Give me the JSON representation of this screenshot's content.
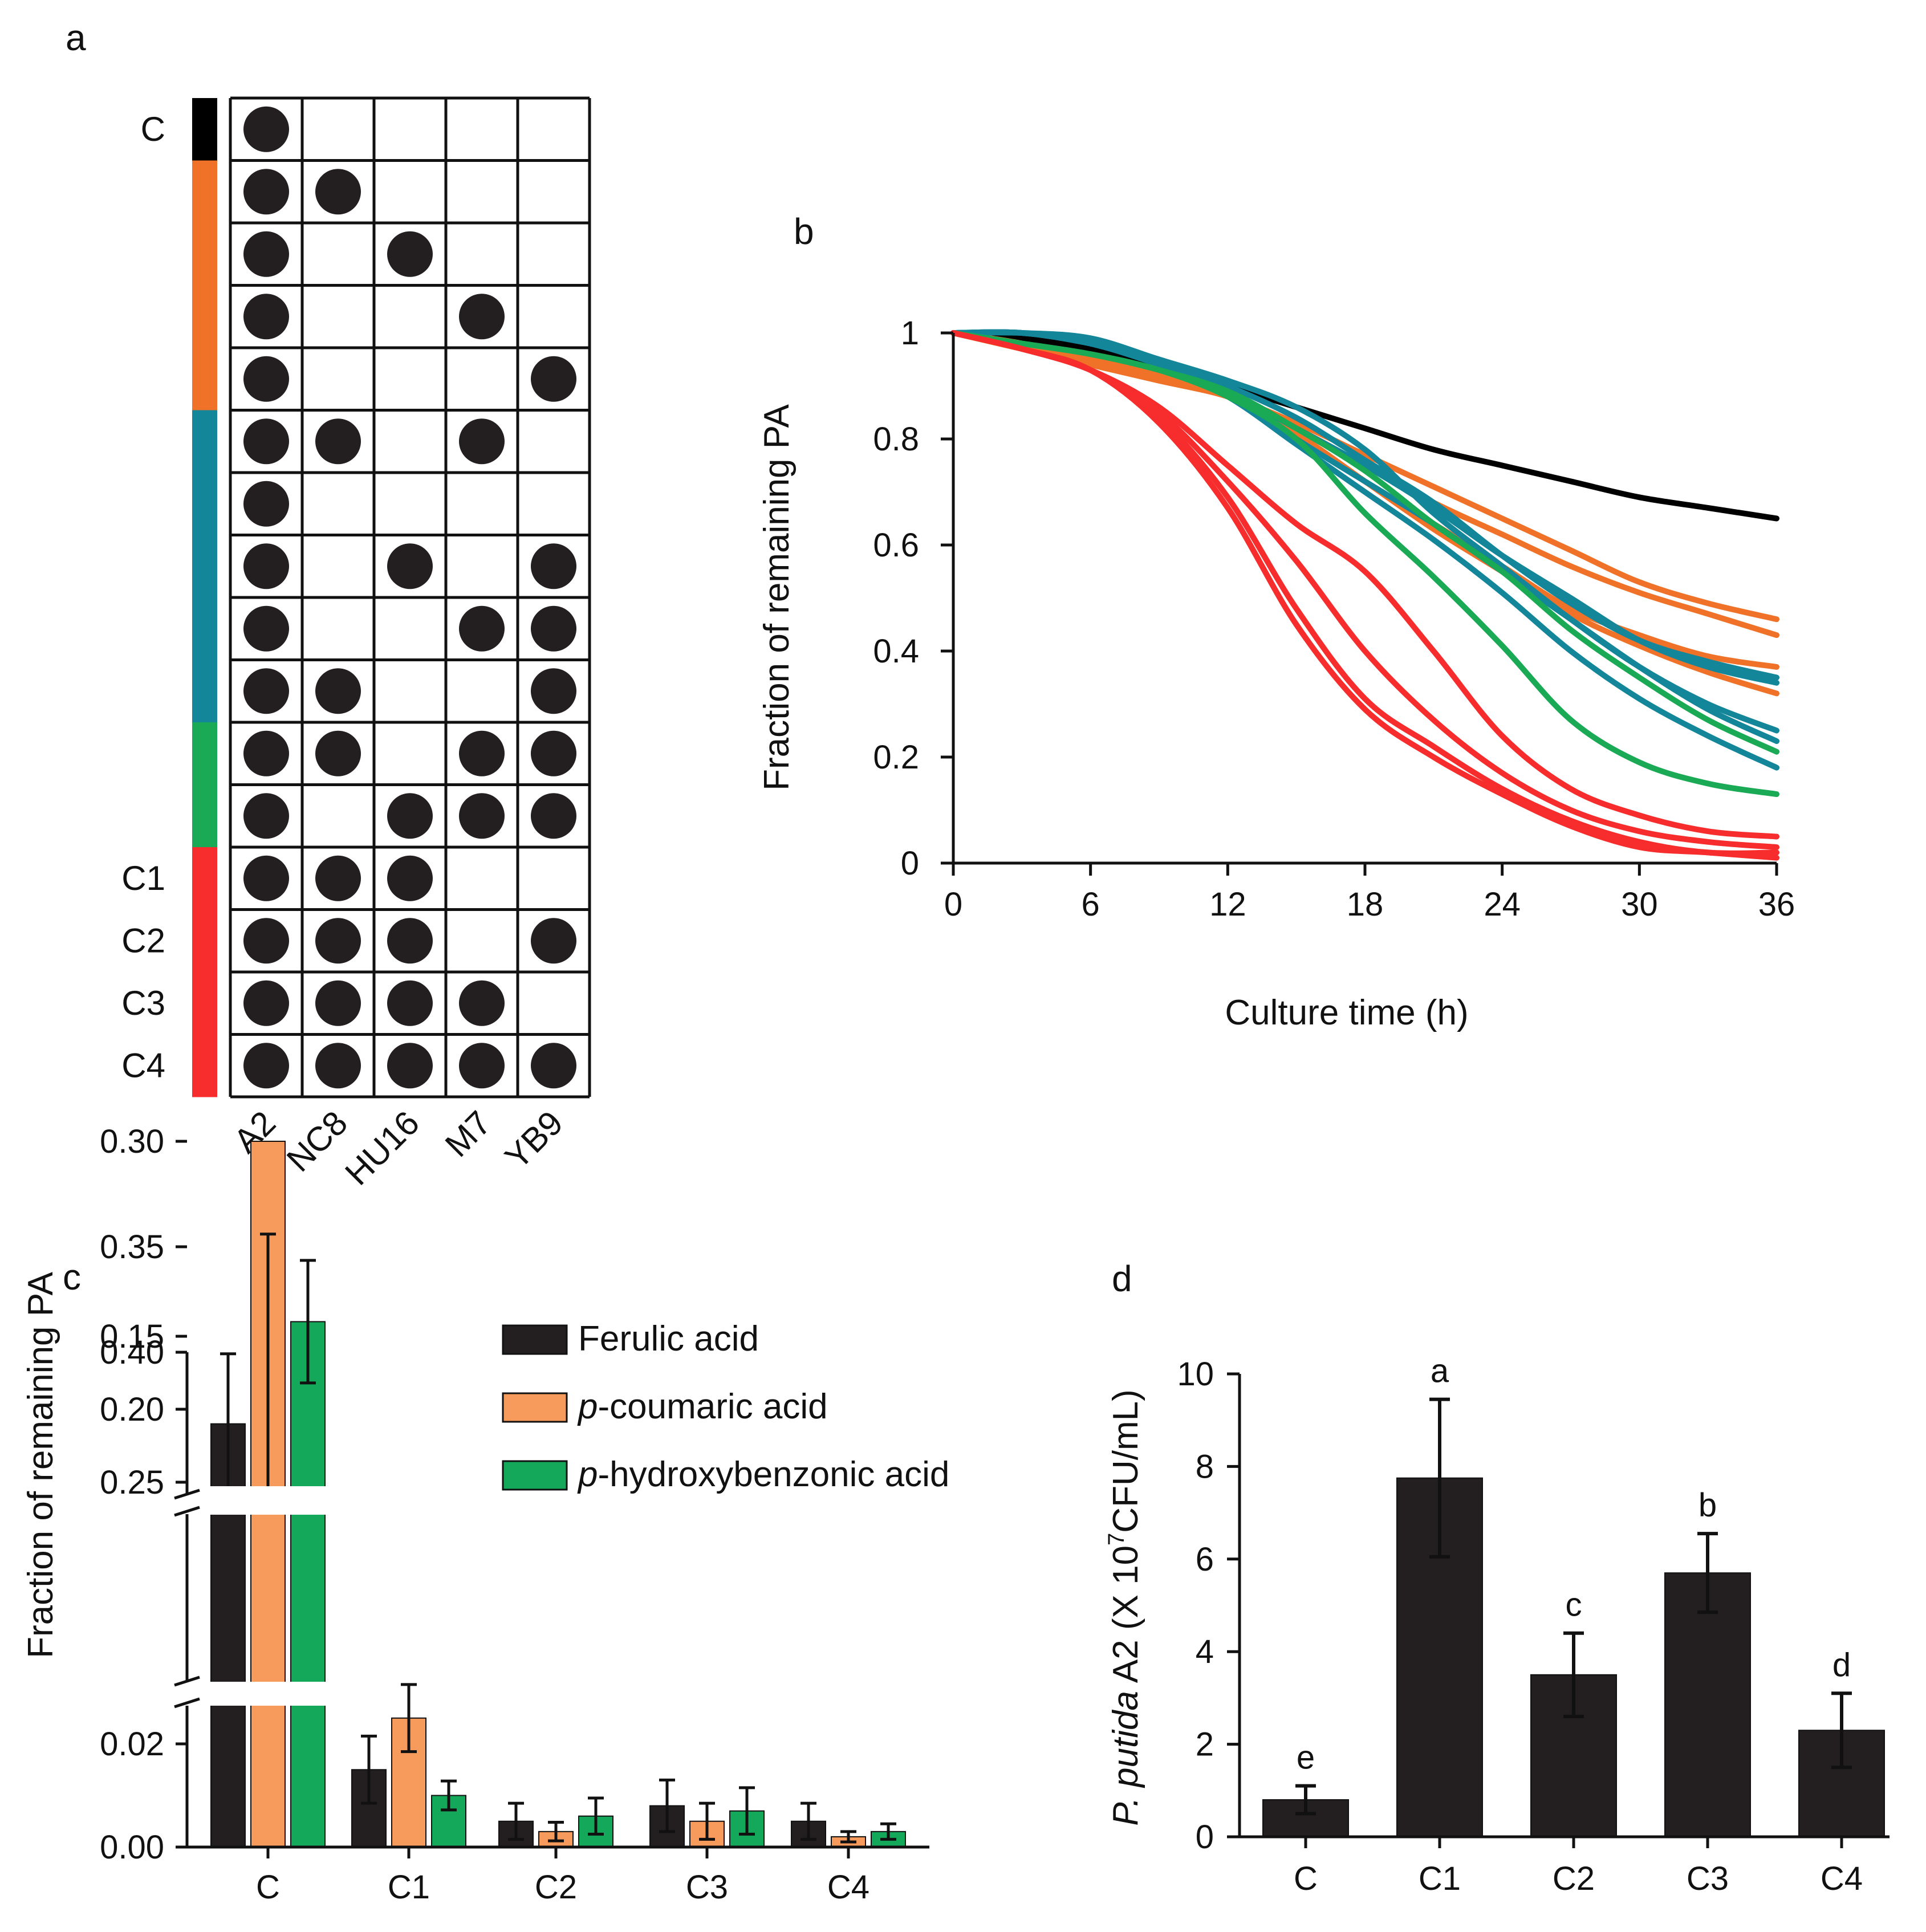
{
  "panel_a": {
    "label": "a",
    "chart_data": {
      "type": "table",
      "columns": [
        "A2",
        "NC8",
        "HU16",
        "M7",
        "YB9"
      ],
      "rows": [
        {
          "label": "C",
          "group": "control",
          "filled": [
            1,
            0,
            0,
            0,
            0
          ]
        },
        {
          "label": "",
          "group": "two",
          "filled": [
            1,
            1,
            0,
            0,
            0
          ]
        },
        {
          "label": "",
          "group": "two",
          "filled": [
            1,
            0,
            1,
            0,
            0
          ]
        },
        {
          "label": "",
          "group": "two",
          "filled": [
            1,
            0,
            0,
            1,
            0
          ]
        },
        {
          "label": "",
          "group": "two",
          "filled": [
            1,
            0,
            0,
            0,
            1
          ]
        },
        {
          "label": "",
          "group": "three",
          "filled": [
            1,
            1,
            0,
            1,
            0
          ]
        },
        {
          "label": "",
          "group": "three",
          "filled": [
            1,
            0,
            0,
            0,
            0
          ]
        },
        {
          "label": "",
          "group": "three",
          "filled": [
            1,
            0,
            1,
            0,
            1
          ]
        },
        {
          "label": "",
          "group": "three",
          "filled": [
            1,
            0,
            0,
            1,
            1
          ]
        },
        {
          "label": "",
          "group": "three",
          "filled": [
            1,
            1,
            0,
            0,
            1
          ]
        },
        {
          "label": "",
          "group": "four",
          "filled": [
            1,
            1,
            0,
            1,
            1
          ]
        },
        {
          "label": "",
          "group": "four",
          "filled": [
            1,
            0,
            1,
            1,
            1
          ]
        },
        {
          "label": "C1",
          "group": "best",
          "filled": [
            1,
            1,
            1,
            0,
            0
          ]
        },
        {
          "label": "C2",
          "group": "best",
          "filled": [
            1,
            1,
            1,
            0,
            1
          ]
        },
        {
          "label": "C3",
          "group": "best",
          "filled": [
            1,
            1,
            1,
            1,
            0
          ]
        },
        {
          "label": "C4",
          "group": "best",
          "filled": [
            1,
            1,
            1,
            1,
            1
          ]
        }
      ],
      "group_colors": {
        "control": "#000000",
        "two": "#f07228",
        "three": "#13869a",
        "four": "#1aaa55",
        "best": "#f72c2c"
      }
    }
  },
  "panel_b": {
    "label": "b",
    "chart_data": {
      "type": "line",
      "xlabel": "Culture time (h)",
      "ylabel": "Fraction of remaining PA",
      "xlim": [
        0,
        36
      ],
      "ylim": [
        0,
        1
      ],
      "xticks": [
        "0",
        "6",
        "12",
        "18",
        "24",
        "30",
        "36"
      ],
      "yticks": [
        "0",
        "0.2",
        "0.4",
        "0.6",
        "0.8",
        "1"
      ],
      "x": [
        0,
        3,
        6,
        9,
        12,
        15,
        18,
        21,
        24,
        27,
        30,
        33,
        36
      ],
      "series": [
        {
          "name": "C",
          "color": "#000000",
          "values": [
            1.0,
            0.99,
            0.97,
            0.94,
            0.9,
            0.86,
            0.82,
            0.78,
            0.75,
            0.72,
            0.69,
            0.67,
            0.65
          ]
        },
        {
          "name": "orange-1",
          "color": "#f07228",
          "values": [
            1.0,
            0.97,
            0.94,
            0.91,
            0.88,
            0.83,
            0.77,
            0.71,
            0.65,
            0.59,
            0.53,
            0.49,
            0.46
          ]
        },
        {
          "name": "orange-2",
          "color": "#f07228",
          "values": [
            1.0,
            0.97,
            0.94,
            0.91,
            0.88,
            0.82,
            0.75,
            0.68,
            0.62,
            0.56,
            0.51,
            0.47,
            0.43
          ]
        },
        {
          "name": "orange-3",
          "color": "#f07228",
          "values": [
            1.0,
            0.98,
            0.95,
            0.92,
            0.88,
            0.81,
            0.72,
            0.64,
            0.56,
            0.48,
            0.43,
            0.39,
            0.37
          ]
        },
        {
          "name": "orange-4",
          "color": "#f07228",
          "values": [
            1.0,
            0.98,
            0.95,
            0.92,
            0.88,
            0.81,
            0.72,
            0.63,
            0.55,
            0.47,
            0.41,
            0.36,
            0.32
          ]
        },
        {
          "name": "teal-1",
          "color": "#13869a",
          "values": [
            1.0,
            1.0,
            0.98,
            0.95,
            0.9,
            0.84,
            0.76,
            0.68,
            0.58,
            0.49,
            0.42,
            0.38,
            0.35
          ]
        },
        {
          "name": "teal-2",
          "color": "#13869a",
          "values": [
            1.0,
            1.0,
            0.98,
            0.94,
            0.89,
            0.82,
            0.75,
            0.67,
            0.58,
            0.5,
            0.42,
            0.37,
            0.34
          ]
        },
        {
          "name": "teal-3",
          "color": "#13869a",
          "values": [
            1.0,
            1.0,
            0.99,
            0.95,
            0.91,
            0.86,
            0.78,
            0.66,
            0.56,
            0.46,
            0.37,
            0.3,
            0.25
          ]
        },
        {
          "name": "teal-4",
          "color": "#13869a",
          "values": [
            1.0,
            1.0,
            0.98,
            0.94,
            0.89,
            0.8,
            0.72,
            0.64,
            0.55,
            0.46,
            0.37,
            0.29,
            0.23
          ]
        },
        {
          "name": "teal-5",
          "color": "#13869a",
          "values": [
            1.0,
            1.0,
            0.98,
            0.94,
            0.88,
            0.79,
            0.7,
            0.61,
            0.51,
            0.4,
            0.31,
            0.24,
            0.18
          ]
        },
        {
          "name": "green-1",
          "color": "#1aaa55",
          "values": [
            1.0,
            0.98,
            0.96,
            0.93,
            0.89,
            0.82,
            0.74,
            0.64,
            0.55,
            0.44,
            0.35,
            0.27,
            0.21
          ]
        },
        {
          "name": "green-2",
          "color": "#1aaa55",
          "values": [
            1.0,
            0.98,
            0.96,
            0.93,
            0.88,
            0.8,
            0.66,
            0.54,
            0.41,
            0.27,
            0.19,
            0.15,
            0.13
          ]
        },
        {
          "name": "C1",
          "color": "#f72c2c",
          "values": [
            1.0,
            0.97,
            0.93,
            0.86,
            0.75,
            0.64,
            0.55,
            0.4,
            0.24,
            0.14,
            0.09,
            0.06,
            0.05
          ]
        },
        {
          "name": "C2",
          "color": "#f72c2c",
          "values": [
            1.0,
            0.97,
            0.93,
            0.85,
            0.72,
            0.57,
            0.4,
            0.27,
            0.17,
            0.1,
            0.06,
            0.04,
            0.03
          ]
        },
        {
          "name": "C3",
          "color": "#f72c2c",
          "values": [
            1.0,
            0.97,
            0.93,
            0.84,
            0.69,
            0.48,
            0.31,
            0.22,
            0.14,
            0.08,
            0.04,
            0.02,
            0.02
          ]
        },
        {
          "name": "C4",
          "color": "#f72c2c",
          "values": [
            1.0,
            0.97,
            0.93,
            0.83,
            0.67,
            0.45,
            0.29,
            0.2,
            0.13,
            0.07,
            0.03,
            0.02,
            0.01
          ]
        }
      ]
    }
  },
  "panel_c": {
    "label": "c",
    "chart_data": {
      "type": "bar",
      "ylabel": "Fraction of remaining PA",
      "categories": [
        "C",
        "C1",
        "C2",
        "C3",
        "C4"
      ],
      "broken_axis": true,
      "yticks_top": [
        "0.40",
        "0.35",
        "0.30"
      ],
      "yticks_mid": [
        "0.25",
        "0.20",
        "0.15"
      ],
      "yticks_low": [
        "0.02",
        "0.00"
      ],
      "legend": [
        "Ferulic acid",
        "p-coumaric acid",
        "p-hydroxybenzonic acid"
      ],
      "legend_italic_prefix": [
        "",
        "p",
        "p"
      ],
      "legend_suffix": [
        "Ferulic acid",
        "-coumaric acid",
        "-hydroxybenzonic acid"
      ],
      "series": [
        {
          "name": "Ferulic acid",
          "color": "#231f20",
          "values": [
            0.21,
            0.015,
            0.005,
            0.008,
            0.005
          ],
          "errors": [
            0.048,
            0.0065,
            0.0035,
            0.005,
            0.0035
          ]
        },
        {
          "name": "p-coumaric acid",
          "color": "#f79b5c",
          "values": [
            0.3,
            0.025,
            0.003,
            0.005,
            0.002
          ],
          "errors": [
            0.044,
            0.0065,
            0.0018,
            0.0035,
            0.001
          ]
        },
        {
          "name": "p-hydroxybenzonic acid",
          "color": "#14a85a",
          "values": [
            0.14,
            0.01,
            0.006,
            0.007,
            0.003
          ],
          "errors": [
            0.042,
            0.0028,
            0.0035,
            0.0045,
            0.0015
          ]
        }
      ]
    }
  },
  "panel_d": {
    "label": "d",
    "chart_data": {
      "type": "bar",
      "ylabel_italic": "P. putida",
      "ylabel_rest": " A2 (X 10",
      "ylabel_sup": "7",
      "ylabel_end": "CFU/mL)",
      "ylim": [
        0,
        10
      ],
      "yticks": [
        "0",
        "2",
        "4",
        "6",
        "8",
        "10"
      ],
      "categories": [
        "C",
        "C1",
        "C2",
        "C3",
        "C4"
      ],
      "values": [
        0.8,
        7.75,
        3.5,
        5.7,
        2.3
      ],
      "errors": [
        0.3,
        1.7,
        0.9,
        0.85,
        0.8
      ],
      "letters": [
        "e",
        "a",
        "c",
        "b",
        "d"
      ],
      "color": "#231f20"
    }
  }
}
